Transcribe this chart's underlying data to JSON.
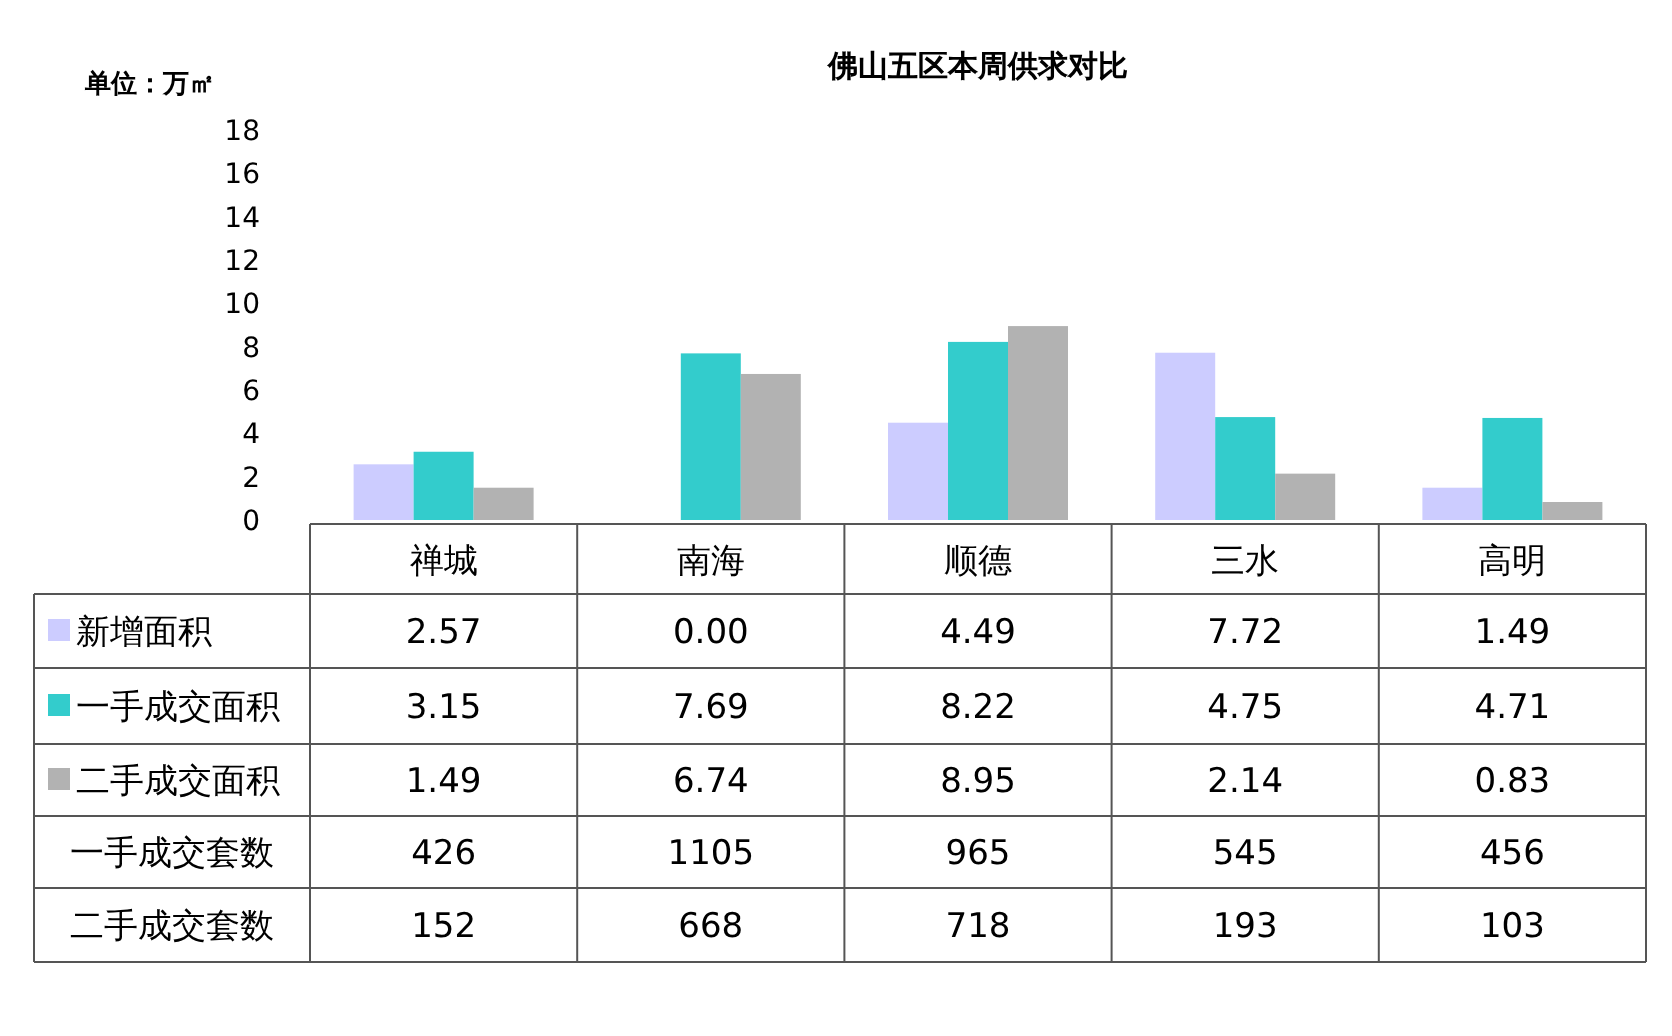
{
  "chart_data": {
    "type": "bar",
    "title": "佛山五区本周供求对比",
    "ylabel": "单位：万㎡",
    "categories": [
      "禅城",
      "南海",
      "顺德",
      "三水",
      "高明"
    ],
    "ylim": [
      0,
      18
    ],
    "yticks": [
      0,
      2,
      4,
      6,
      8,
      10,
      12,
      14,
      16,
      18
    ],
    "grid": false,
    "data_labels": true,
    "legend": "bottom",
    "series": [
      {
        "name": "新增面积",
        "color": "#ccccff",
        "values": [
          2.57,
          0.0,
          4.49,
          7.72,
          1.49
        ],
        "value_labels": [
          "2.57",
          "0.00",
          "4.49",
          "7.72",
          "1.49"
        ]
      },
      {
        "name": "一手成交面积",
        "color": "#33cccc",
        "values": [
          3.15,
          7.69,
          8.22,
          4.75,
          4.71
        ],
        "value_labels": [
          "3.15",
          "7.69",
          "8.22",
          "4.75",
          "4.71"
        ]
      },
      {
        "name": "二手成交面积",
        "color": "#b2b2b2",
        "values": [
          1.49,
          6.74,
          8.95,
          2.14,
          0.83
        ],
        "value_labels": [
          "1.49",
          "6.74",
          "8.95",
          "2.14",
          "0.83"
        ]
      },
      {
        "name": "一手成交套数",
        "type": "other",
        "values": [
          null,
          null,
          null,
          null,
          null
        ],
        "value_labels": [
          "426",
          "1105",
          "965",
          "545",
          "456"
        ]
      },
      {
        "name": "二手成交套数",
        "type": "other",
        "values": [
          null,
          null,
          null,
          null,
          null
        ],
        "value_labels": [
          "152",
          "668",
          "718",
          "193",
          "103"
        ]
      }
    ]
  }
}
